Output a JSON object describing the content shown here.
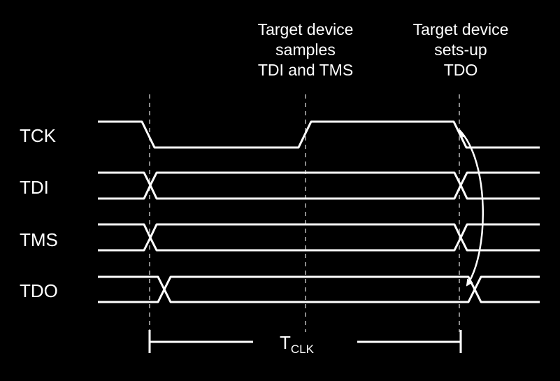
{
  "annotations": {
    "sample_line1": "Target device",
    "sample_line2": "samples",
    "sample_line3": "TDI and TMS",
    "setup_line1": "Target device",
    "setup_line2": "sets-up",
    "setup_line3": "TDO"
  },
  "signals": [
    {
      "name": "TCK"
    },
    {
      "name": "TDI"
    },
    {
      "name": "TMS"
    },
    {
      "name": "TDO"
    }
  ],
  "period": {
    "main": "T",
    "sub": "CLK"
  },
  "colors": {
    "background": "#000000",
    "signal": "#ffffff",
    "guide": "#8a8a8a"
  }
}
